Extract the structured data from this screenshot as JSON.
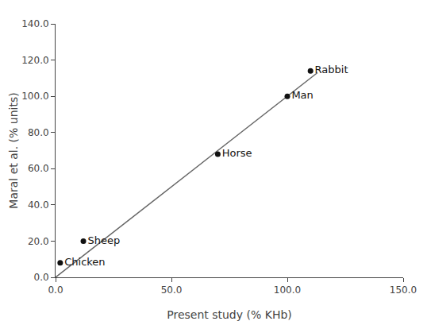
{
  "chart_data": {
    "type": "scatter",
    "xlabel": "Present study (% KHb)",
    "ylabel": "Maral et al. (% units)",
    "series": [
      {
        "type": "line",
        "x": [
          0,
          113
        ],
        "values": [
          0,
          113
        ],
        "color": "#666666",
        "line_style": "solid"
      },
      {
        "type": "scatter",
        "x": [
          2,
          12,
          70,
          100,
          110
        ],
        "values": [
          8,
          20,
          68,
          100,
          114
        ],
        "labels": [
          "Chicken",
          "Sheep",
          "Horse",
          "Man",
          "Rabbit"
        ],
        "color": "#111111",
        "marker": "circle"
      }
    ],
    "xlim": [
      0,
      150
    ],
    "ylim": [
      0,
      140
    ],
    "xticks": [
      {
        "value": 0,
        "label": "0.0"
      },
      {
        "value": 50,
        "label": "50.0"
      },
      {
        "value": 100,
        "label": "100.0"
      },
      {
        "value": 150,
        "label": "150.0"
      }
    ],
    "yticks": [
      {
        "value": 0,
        "label": "0.0"
      },
      {
        "value": 20,
        "label": "20.0"
      },
      {
        "value": 40,
        "label": "40.0"
      },
      {
        "value": 60,
        "label": "60.0"
      },
      {
        "value": 80,
        "label": "80.0"
      },
      {
        "value": 100,
        "label": "100.0"
      },
      {
        "value": 120,
        "label": "120.0"
      },
      {
        "value": 140,
        "label": "140.0"
      }
    ],
    "grid": false
  }
}
